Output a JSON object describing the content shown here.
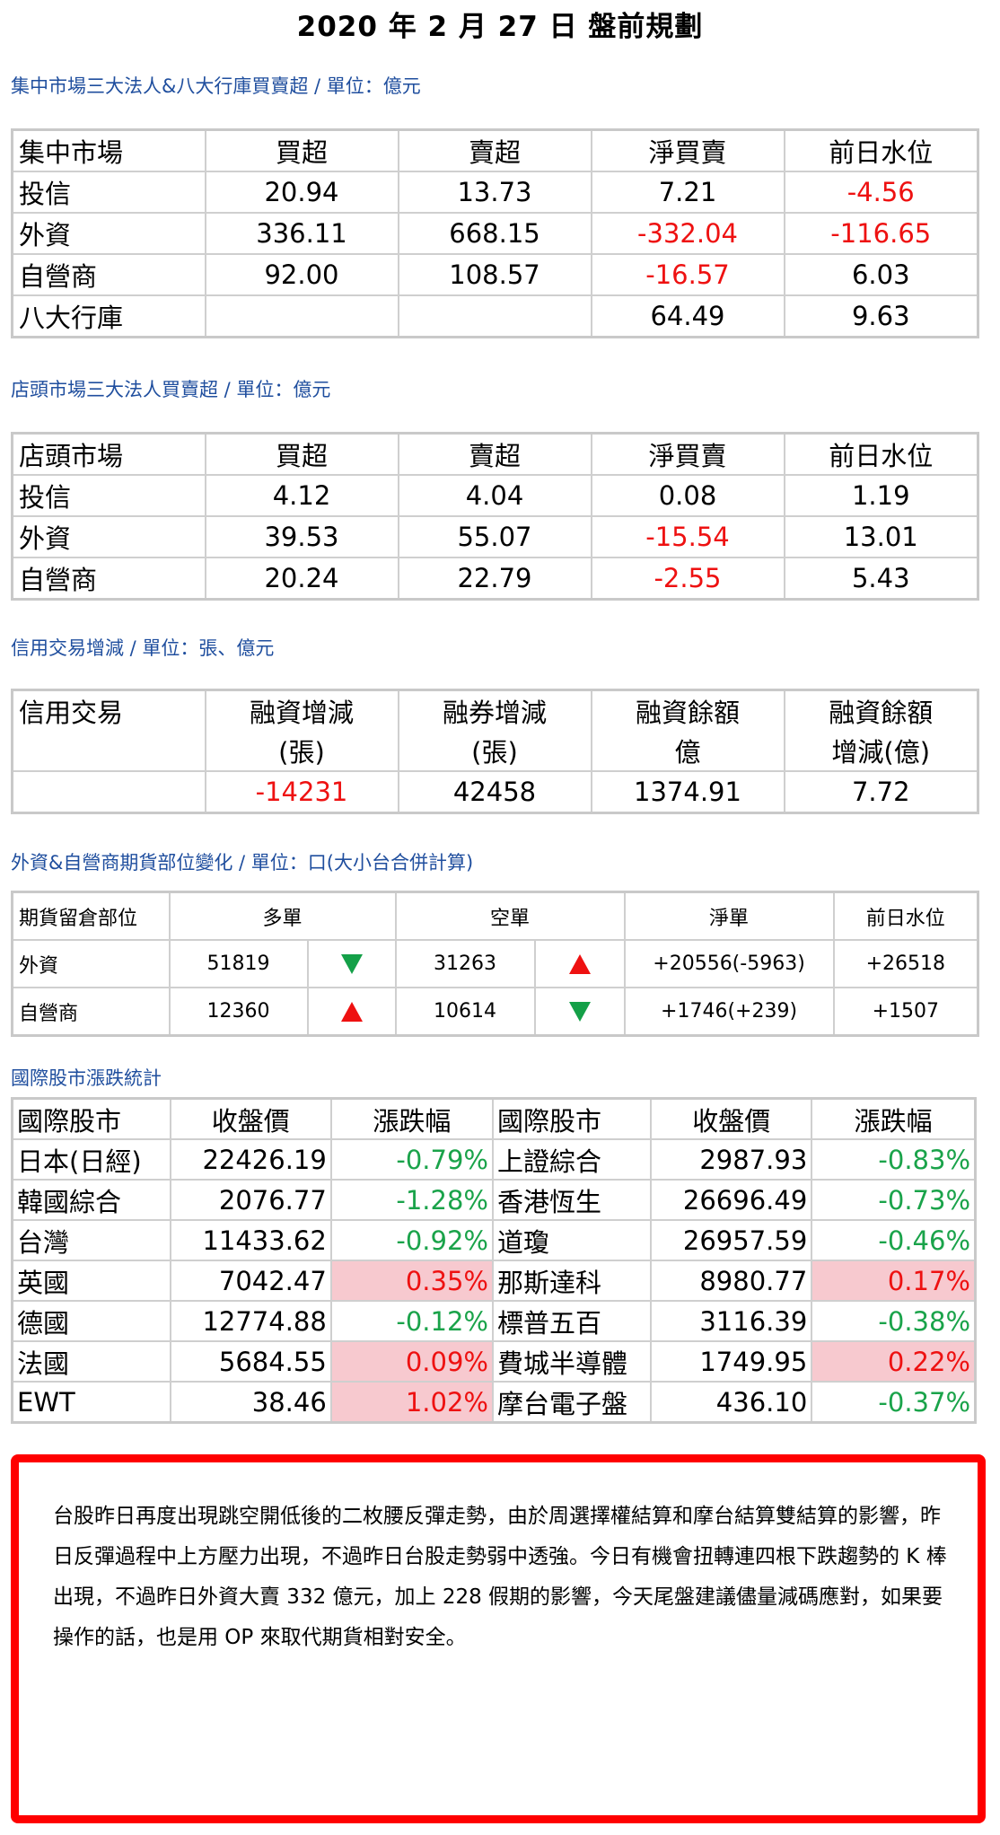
{
  "title": "2020 年 2 月 27 日  盤前規劃",
  "listed": {
    "caption": "集中市場三大法人&八大行庫買賣超 / 單位：億元",
    "headers": [
      "集中市場",
      "買超",
      "賣超",
      "淨買賣",
      "前日水位"
    ],
    "rows": [
      [
        "投信",
        "20.94",
        "13.73",
        "7.21",
        "-4.56"
      ],
      [
        "外資",
        "336.11",
        "668.15",
        "-332.04",
        "-116.65"
      ],
      [
        "自營商",
        "92.00",
        "108.57",
        "-16.57",
        "6.03"
      ],
      [
        "八大行庫",
        "",
        "",
        "64.49",
        "9.63"
      ]
    ]
  },
  "otc": {
    "caption": "店頭市場三大法人買賣超 / 單位：億元",
    "headers": [
      "店頭市場",
      "買超",
      "賣超",
      "淨買賣",
      "前日水位"
    ],
    "rows": [
      [
        "投信",
        "4.12",
        "4.04",
        "0.08",
        "1.19"
      ],
      [
        "外資",
        "39.53",
        "55.07",
        "-15.54",
        "13.01"
      ],
      [
        "自營商",
        "20.24",
        "22.79",
        "-2.55",
        "5.43"
      ]
    ]
  },
  "margin": {
    "caption": "信用交易增減 / 單位：張、億元",
    "headers": [
      "信用交易",
      "融資增減",
      "融券增減",
      "融資餘額",
      "融資餘額"
    ],
    "subheaders": [
      "",
      "(張)",
      "(張)",
      "億",
      "增減(億)"
    ],
    "values": [
      "",
      "-14231",
      "42458",
      "1374.91",
      "7.72"
    ]
  },
  "futures": {
    "caption": "外資&自營商期貨部位變化 / 單位：口(大小台合併計算)",
    "headers": [
      "期貨留倉部位",
      "多單",
      "空單",
      "淨單",
      "前日水位"
    ],
    "rows": [
      {
        "name": "外資",
        "long": "51819",
        "long_arrow": "down",
        "short": "31263",
        "short_arrow": "up",
        "net": "+20556(-5963)",
        "prev": "+26518"
      },
      {
        "name": "自營商",
        "long": "12360",
        "long_arrow": "up",
        "short": "10614",
        "short_arrow": "down",
        "net": "+1746(+239)",
        "prev": "+1507"
      }
    ]
  },
  "intl": {
    "caption": "國際股市漲跌統計",
    "headers": [
      "國際股市",
      "收盤價",
      "漲跌幅",
      "國際股市",
      "收盤價",
      "漲跌幅"
    ],
    "rows": [
      [
        "日本(日經)",
        "22426.19",
        "-0.79%",
        "上證綜合",
        "2987.93",
        "-0.83%"
      ],
      [
        "韓國綜合",
        "2076.77",
        "-1.28%",
        "香港恆生",
        "26696.49",
        "-0.73%"
      ],
      [
        "台灣",
        "11433.62",
        "-0.92%",
        "道瓊",
        "26957.59",
        "-0.46%"
      ],
      [
        "英國",
        "7042.47",
        "0.35%",
        "那斯達科",
        "8980.77",
        "0.17%"
      ],
      [
        "德國",
        "12774.88",
        "-0.12%",
        "標普五百",
        "3116.39",
        "-0.38%"
      ],
      [
        "法國",
        "5684.55",
        "0.09%",
        "費城半導體",
        "1749.95",
        "0.22%"
      ],
      [
        "EWT",
        "38.46",
        "1.02%",
        "摩台電子盤",
        "436.10",
        "-0.37%"
      ]
    ]
  },
  "colors": {
    "negative": "#ee1111",
    "positive_bg": "#f7c9cf",
    "decline_text": "#1aa34a",
    "caption": "#1f4e9e",
    "border_box": "#ff0000"
  },
  "comment": "台股昨日再度出現跳空開低後的二枚腰反彈走勢，由於周選擇權結算和摩台結算雙結算的影響，昨日反彈過程中上方壓力出現，不過昨日台股走勢弱中透強。今日有機會扭轉連四根下跌趨勢的 K 棒出現，不過昨日外資大賣 332 億元，加上 228 假期的影響，今天尾盤建議儘量減碼應對，如果要操作的話，也是用 OP 來取代期貨相對安全。"
}
